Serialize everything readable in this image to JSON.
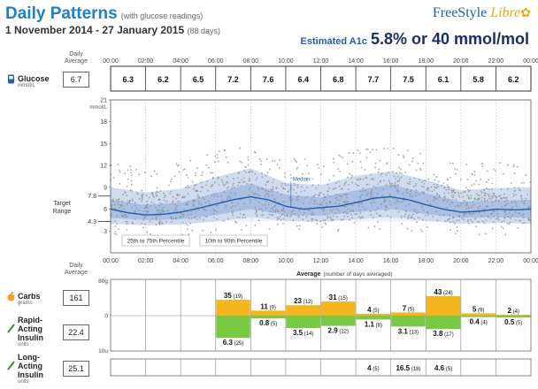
{
  "header": {
    "title": "Daily Patterns",
    "subtitle": "(with glucose readings)",
    "date_range": "1 November 2014 - 27 January 2015",
    "days": "(88 days)",
    "logo_a": "FreeStyle",
    "logo_b": "Libre",
    "a1c_label": "Estimated A1c",
    "a1c_value": "5.8% or 40 mmol/mol"
  },
  "glucose": {
    "label": "Glucose",
    "unit": "mmol/L",
    "daily_average_label": "Daily Average",
    "daily_average": "6.7"
  },
  "carbs": {
    "label": "Carbs",
    "unit": "grams",
    "daily_average": "161"
  },
  "rapid": {
    "label": "Rapid-Acting Insulin",
    "label_1": "Rapid-",
    "label_2": "Acting",
    "label_3": "Insulin",
    "unit": "units",
    "daily_average": "22.4"
  },
  "long": {
    "label": "Long-Acting Insulin",
    "label_1": "Long-",
    "label_2": "Acting",
    "label_3": "Insulin",
    "unit": "units",
    "daily_average": "25.1"
  },
  "lower_daily_average_label": "Daily Average",
  "colors": {
    "title": "#1f7fc4",
    "median": "#1f5fa8",
    "band_outer": "#cfdcf0",
    "band_inner": "#a9c0e3",
    "carbs": "#f5b51e",
    "insulin": "#7ac943",
    "dots": "#8a8a8a"
  },
  "chart_data": [
    {
      "type": "line",
      "title": "",
      "x_ticks": [
        "00:00",
        "02:00",
        "04:00",
        "06:00",
        "08:00",
        "10:00",
        "12:00",
        "14:00",
        "16:00",
        "18:00",
        "20:00",
        "22:00",
        "00:00"
      ],
      "xlim": [
        0,
        24
      ],
      "ylim": [
        0,
        21
      ],
      "y_ticks": [
        "3",
        "6",
        "9",
        "12",
        "15",
        "18",
        "21"
      ],
      "y_unit": "mmol/L",
      "target_range_label": "Target Range",
      "target_range": [
        4.3,
        7.8
      ],
      "target_range_tick_labels": [
        "7.8",
        "4.3"
      ],
      "hourly_avg_x": [
        1,
        3,
        5,
        7,
        9,
        11,
        13,
        15,
        17,
        19,
        21,
        23
      ],
      "hourly_avg": [
        "6.3",
        "6.2",
        "6.5",
        "7.2",
        "7.6",
        "6.4",
        "6.8",
        "7.7",
        "7.5",
        "6.1",
        "5.8",
        "6.2"
      ],
      "median_label": "Median",
      "band_inner_label": "25th to 75th Percentile",
      "band_outer_label": "10th to 90th Percentile",
      "series": [
        {
          "name": "Median",
          "x": [
            0,
            1,
            2,
            3,
            4,
            5,
            6,
            7,
            8,
            9,
            10,
            11,
            12,
            13,
            14,
            15,
            16,
            17,
            18,
            19,
            20,
            21,
            22,
            23,
            24
          ],
          "y": [
            6.0,
            5.5,
            5.2,
            5.3,
            5.6,
            6.1,
            6.7,
            7.3,
            7.7,
            7.3,
            6.4,
            6.0,
            6.2,
            6.4,
            6.9,
            7.5,
            7.7,
            7.3,
            6.6,
            6.0,
            5.6,
            5.7,
            6.0,
            5.9,
            6.0
          ]
        },
        {
          "name": "25th Percentile",
          "x": [
            0,
            2,
            4,
            6,
            8,
            10,
            12,
            14,
            16,
            18,
            20,
            22,
            24
          ],
          "y": [
            4.8,
            4.5,
            4.6,
            5.2,
            6.0,
            5.2,
            5.1,
            5.6,
            6.0,
            5.3,
            4.8,
            4.9,
            4.8
          ]
        },
        {
          "name": "75th Percentile",
          "x": [
            0,
            2,
            4,
            6,
            8,
            10,
            12,
            14,
            16,
            18,
            20,
            22,
            24
          ],
          "y": [
            7.3,
            6.6,
            6.9,
            8.2,
            9.5,
            8.0,
            7.6,
            8.6,
            9.4,
            8.2,
            7.0,
            7.2,
            7.3
          ]
        },
        {
          "name": "10th Percentile",
          "x": [
            0,
            2,
            4,
            6,
            8,
            10,
            12,
            14,
            16,
            18,
            20,
            22,
            24
          ],
          "y": [
            4.0,
            3.8,
            3.9,
            4.3,
            4.9,
            4.4,
            4.3,
            4.6,
            4.9,
            4.4,
            4.0,
            4.1,
            4.0
          ]
        },
        {
          "name": "90th Percentile",
          "x": [
            0,
            2,
            4,
            6,
            8,
            10,
            12,
            14,
            16,
            18,
            20,
            22,
            24
          ],
          "y": [
            9.0,
            8.3,
            8.8,
            10.4,
            11.6,
            9.6,
            9.3,
            10.6,
            11.2,
            10.0,
            8.6,
            8.9,
            9.0
          ]
        }
      ]
    },
    {
      "type": "bar",
      "title": "Average",
      "subtitle": "(number of days averaged)",
      "categories": [
        "00:00",
        "02:00",
        "04:00",
        "06:00",
        "08:00",
        "10:00",
        "12:00",
        "14:00",
        "16:00",
        "18:00",
        "20:00",
        "22:00"
      ],
      "x_ticks": [
        "00:00",
        "02:00",
        "04:00",
        "06:00",
        "08:00",
        "10:00",
        "12:00",
        "14:00",
        "16:00",
        "18:00",
        "20:00",
        "22:00",
        "00:00"
      ],
      "carbs_axis_label": "80g",
      "carbs_axis_zero": "0",
      "insulin_axis_label": "10u",
      "carbs_ylim": [
        0,
        80
      ],
      "insulin_ylim": [
        0,
        10
      ],
      "series": [
        {
          "name": "Carbs",
          "values": [
            null,
            null,
            null,
            35,
            11,
            23,
            31,
            4,
            7,
            43,
            5,
            2
          ],
          "days": [
            null,
            null,
            null,
            19,
            9,
            12,
            15,
            5,
            5,
            24,
            9,
            4
          ]
        },
        {
          "name": "Rapid-Acting Insulin",
          "values": [
            null,
            null,
            null,
            6.3,
            0.8,
            3.5,
            2.9,
            1.1,
            3.1,
            3.8,
            0.4,
            0.5
          ],
          "days": [
            null,
            null,
            null,
            25,
            5,
            14,
            12,
            8,
            13,
            17,
            4,
            5
          ]
        },
        {
          "name": "Long-Acting Insulin",
          "values": [
            null,
            null,
            null,
            null,
            null,
            null,
            null,
            4.0,
            16.5,
            4.6,
            null,
            null
          ],
          "days": [
            null,
            null,
            null,
            null,
            null,
            null,
            null,
            5,
            18,
            5,
            null,
            null
          ]
        }
      ]
    }
  ]
}
